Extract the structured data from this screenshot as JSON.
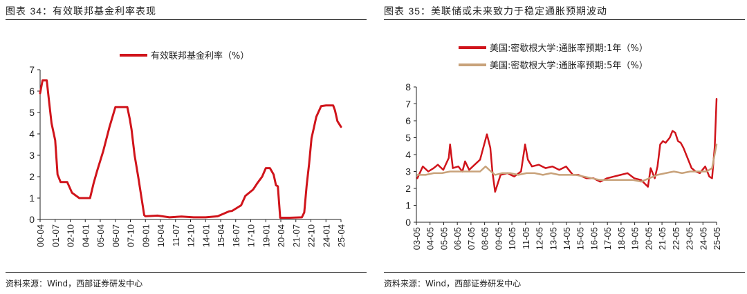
{
  "left": {
    "title_prefix": "图表",
    "title_number": "34：",
    "title_text": "有效联邦基金利率表现",
    "source": "资料来源：Wind，西部证券研发中心"
  },
  "right": {
    "title_prefix": "图表",
    "title_number": "35：",
    "title_text": "美联储或未来致力于稳定通胀预期波动",
    "source": "资料来源：Wind，西部证券研发中心"
  },
  "colors": {
    "red": "#D0141B",
    "tan": "#C8A27A",
    "axis": "#222222"
  },
  "chart_data": [
    {
      "type": "line",
      "title": "",
      "xlabel": "",
      "ylabel": "",
      "ylim": [
        0,
        7
      ],
      "yticks": [
        0,
        1,
        2,
        3,
        4,
        5,
        6,
        7
      ],
      "xticks": [
        "00-04",
        "01-07",
        "02-10",
        "04-01",
        "05-04",
        "06-07",
        "07-10",
        "09-01",
        "10-04",
        "11-07",
        "12-10",
        "14-01",
        "15-04",
        "16-07",
        "17-10",
        "19-01",
        "20-04",
        "21-07",
        "22-10",
        "24-01",
        "25-04"
      ],
      "xlim": [
        2000.25,
        2025.25
      ],
      "legend_position": "top",
      "grid": false,
      "series": [
        {
          "name": "有效联邦基金利率（%）",
          "color": "#D0141B",
          "x": [
            2000.25,
            2000.45,
            2000.8,
            2001.0,
            2001.2,
            2001.5,
            2001.7,
            2001.95,
            2002.1,
            2002.5,
            2002.9,
            2003.5,
            2004.4,
            2004.7,
            2005.0,
            2005.5,
            2006.0,
            2006.5,
            2006.9,
            2007.5,
            2007.7,
            2007.85,
            2008.1,
            2008.4,
            2008.9,
            2009.0,
            2010.0,
            2011.0,
            2012.0,
            2013.0,
            2014.0,
            2015.0,
            2015.95,
            2016.2,
            2016.95,
            2017.3,
            2017.95,
            2018.3,
            2018.7,
            2019.0,
            2019.35,
            2019.65,
            2019.85,
            2020.0,
            2020.2,
            2020.3,
            2021.0,
            2022.0,
            2022.2,
            2022.4,
            2022.6,
            2022.8,
            2023.0,
            2023.2,
            2023.6,
            2024.0,
            2024.6,
            2024.75,
            2024.95,
            2025.25
          ],
          "values": [
            5.9,
            6.5,
            6.5,
            5.5,
            4.5,
            3.7,
            2.1,
            1.75,
            1.75,
            1.75,
            1.25,
            1.0,
            1.0,
            1.7,
            2.3,
            3.2,
            4.3,
            5.25,
            5.25,
            5.25,
            4.7,
            4.2,
            3.0,
            2.0,
            0.2,
            0.15,
            0.18,
            0.1,
            0.14,
            0.1,
            0.1,
            0.15,
            0.38,
            0.4,
            0.66,
            1.1,
            1.4,
            1.7,
            2.0,
            2.4,
            2.4,
            2.1,
            1.6,
            1.55,
            0.08,
            0.08,
            0.08,
            0.1,
            0.33,
            1.6,
            2.6,
            3.8,
            4.3,
            4.8,
            5.3,
            5.33,
            5.33,
            5.1,
            4.6,
            4.33
          ]
        }
      ]
    },
    {
      "type": "line",
      "title": "",
      "xlabel": "",
      "ylabel": "",
      "ylim": [
        0,
        8
      ],
      "yticks": [
        0,
        1,
        2,
        3,
        4,
        5,
        6,
        7,
        8
      ],
      "xticks": [
        "03-05",
        "04-05",
        "05-05",
        "06-05",
        "07-05",
        "08-05",
        "09-05",
        "10-05",
        "11-05",
        "12-05",
        "13-05",
        "14-05",
        "15-05",
        "16-05",
        "17-05",
        "18-05",
        "19-05",
        "20-05",
        "21-05",
        "22-05",
        "23-05",
        "24-05",
        "25-05"
      ],
      "xlim": [
        2003.33,
        2025.33
      ],
      "legend_position": "top",
      "grid": false,
      "series": [
        {
          "name": "美国:密歇根大学:通胀率预期:1年（%）",
          "color": "#D0141B",
          "x": [
            2003.4,
            2003.8,
            2004.2,
            2004.6,
            2004.9,
            2005.3,
            2005.7,
            2005.8,
            2006.0,
            2006.4,
            2006.7,
            2006.9,
            2007.2,
            2007.6,
            2008.0,
            2008.3,
            2008.5,
            2008.75,
            2008.9,
            2009.1,
            2009.5,
            2010.0,
            2010.5,
            2011.0,
            2011.3,
            2011.5,
            2011.8,
            2012.3,
            2012.8,
            2013.3,
            2013.8,
            2014.3,
            2014.8,
            2015.2,
            2015.8,
            2016.3,
            2016.8,
            2017.3,
            2017.8,
            2018.3,
            2018.8,
            2019.3,
            2019.8,
            2020.3,
            2020.5,
            2020.8,
            2021.0,
            2021.2,
            2021.4,
            2021.6,
            2021.9,
            2022.1,
            2022.3,
            2022.5,
            2022.7,
            2022.9,
            2023.2,
            2023.5,
            2023.8,
            2024.1,
            2024.5,
            2024.8,
            2025.0,
            2025.2,
            2025.33
          ],
          "values": [
            2.6,
            3.3,
            3.0,
            3.2,
            3.4,
            3.1,
            3.8,
            4.6,
            3.2,
            3.3,
            3.0,
            3.6,
            3.1,
            3.4,
            3.7,
            4.6,
            5.2,
            4.4,
            3.0,
            1.8,
            2.8,
            2.9,
            2.7,
            3.0,
            4.6,
            3.7,
            3.3,
            3.4,
            3.2,
            3.3,
            3.1,
            3.3,
            2.8,
            2.8,
            2.6,
            2.6,
            2.4,
            2.6,
            2.7,
            2.8,
            2.9,
            2.6,
            2.5,
            2.1,
            3.2,
            2.6,
            3.3,
            4.6,
            4.8,
            4.7,
            5.0,
            5.4,
            5.3,
            4.8,
            4.7,
            4.4,
            3.8,
            3.2,
            3.0,
            2.9,
            3.3,
            2.7,
            2.6,
            4.5,
            7.3
          ]
        },
        {
          "name": "美国:密歇根大学:通胀率预期:5年（%）",
          "color": "#C8A27A",
          "x": [
            2003.4,
            2004.0,
            2004.6,
            2005.2,
            2005.8,
            2006.4,
            2007.0,
            2007.6,
            2008.0,
            2008.4,
            2008.8,
            2009.1,
            2009.6,
            2010.2,
            2010.8,
            2011.4,
            2012.0,
            2012.6,
            2013.2,
            2013.8,
            2014.4,
            2015.0,
            2015.6,
            2016.2,
            2016.8,
            2017.4,
            2018.0,
            2018.6,
            2019.2,
            2019.8,
            2020.4,
            2021.0,
            2021.6,
            2022.2,
            2022.8,
            2023.4,
            2024.0,
            2024.6,
            2025.0,
            2025.33
          ],
          "values": [
            2.8,
            2.8,
            2.9,
            2.9,
            3.0,
            3.0,
            3.0,
            3.0,
            3.0,
            3.3,
            3.0,
            2.8,
            2.9,
            2.9,
            2.8,
            2.9,
            2.9,
            2.8,
            2.9,
            2.8,
            2.8,
            2.8,
            2.7,
            2.6,
            2.5,
            2.5,
            2.5,
            2.5,
            2.5,
            2.4,
            2.6,
            2.8,
            2.9,
            3.0,
            2.9,
            3.0,
            3.0,
            3.0,
            3.2,
            4.6
          ]
        }
      ]
    }
  ]
}
